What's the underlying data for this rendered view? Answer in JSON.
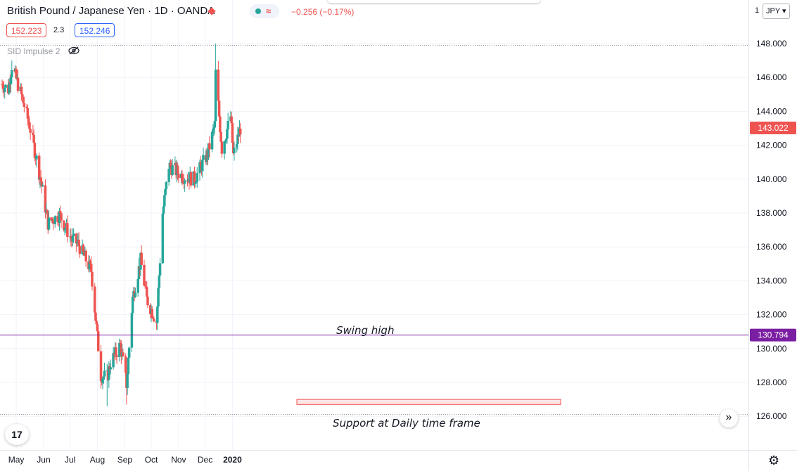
{
  "header": {
    "symbol": "British Pound / Japanese Yen",
    "interval": "1D",
    "exchange": "OANDA",
    "change": "−0.256 (−0.17%)",
    "sell_price": "152.223",
    "spread": "2.3",
    "buy_price": "152.246",
    "indicator_label": "SID Impulse 2",
    "currency": "JPY",
    "currency_prefix": "1",
    "logo_text": "17",
    "scroll_glyph": "»",
    "gear_glyph": "⚙"
  },
  "colors": {
    "up": "#26a69a",
    "down": "#ef5350",
    "level_line": "#7b1fa2",
    "current_price": "#ef5350"
  },
  "chart_data": {
    "type": "candlestick",
    "title": "British Pound / Japanese Yen · 1D · OANDA",
    "ylim": [
      125.0,
      149.0
    ],
    "y_ticks": [
      "126.000",
      "128.000",
      "130.000",
      "132.000",
      "134.000",
      "136.000",
      "138.000",
      "140.000",
      "142.000",
      "144.000",
      "146.000",
      "148.000"
    ],
    "x_ticks": [
      "May",
      "Jun",
      "Jul",
      "Aug",
      "Sep",
      "Oct",
      "Nov",
      "Dec",
      "2020"
    ],
    "current_price_label": "143.022",
    "current_price": 143.022,
    "level_label": "130.794",
    "level": 130.794,
    "annotations": {
      "swing_high": "Swing high",
      "support": "Support at Daily time frame"
    },
    "support_zone": {
      "low": 126.7,
      "high": 127.0
    },
    "anchors": [
      [
        "2019-04-15",
        145.6
      ],
      [
        "2019-04-22",
        145.3
      ],
      [
        "2019-04-26",
        146.7
      ],
      [
        "2019-05-06",
        145.1
      ],
      [
        "2019-05-16",
        143.2
      ],
      [
        "2019-05-29",
        139.9
      ],
      [
        "2019-06-06",
        137.4
      ],
      [
        "2019-06-19",
        137.9
      ],
      [
        "2019-07-03",
        136.4
      ],
      [
        "2019-07-10",
        136.2
      ],
      [
        "2019-07-25",
        134.6
      ],
      [
        "2019-08-05",
        128.4
      ],
      [
        "2019-08-12",
        128.3
      ],
      [
        "2019-08-16",
        129.2
      ],
      [
        "2019-08-27",
        130.2
      ],
      [
        "2019-09-03",
        127.9
      ],
      [
        "2019-09-10",
        133.0
      ],
      [
        "2019-09-19",
        135.2
      ],
      [
        "2019-09-26",
        132.9
      ],
      [
        "2019-10-07",
        131.6
      ],
      [
        "2019-10-14",
        138.0
      ],
      [
        "2019-10-21",
        140.8
      ],
      [
        "2019-11-05",
        140.2
      ],
      [
        "2019-11-19",
        140.0
      ],
      [
        "2019-12-04",
        141.5
      ],
      [
        "2019-12-12",
        143.2
      ],
      [
        "2019-12-13",
        146.3
      ],
      [
        "2019-12-20",
        141.8
      ],
      [
        "2019-12-30",
        143.7
      ],
      [
        "2020-01-02",
        141.4
      ],
      [
        "2020-01-10",
        143.0
      ]
    ],
    "highs": [
      [
        "2019-04-26",
        147.0
      ],
      [
        "2019-12-13",
        148.0
      ],
      [
        "2019-09-19",
        135.7
      ]
    ],
    "lows": [
      [
        "2019-08-12",
        126.6
      ],
      [
        "2019-09-03",
        126.7
      ]
    ]
  }
}
